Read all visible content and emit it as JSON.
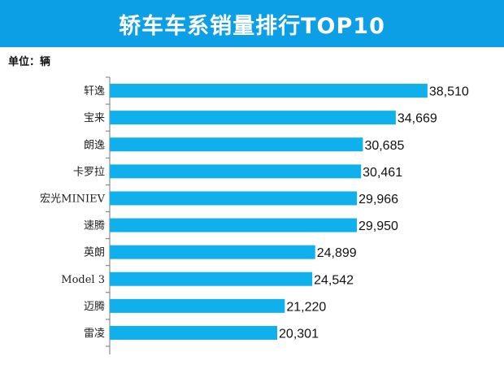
{
  "header": {
    "title": "轿车车系销量排行TOP10",
    "unit_label": "单位：辆"
  },
  "colors": {
    "banner": "#0c9fe6",
    "bar": "#10b0ec",
    "axis": "#777777"
  },
  "chart_data": {
    "type": "bar",
    "orientation": "horizontal",
    "title": "轿车车系销量排行TOP10",
    "unit": "辆",
    "categories": [
      "轩逸",
      "宝来",
      "朗逸",
      "卡罗拉",
      "宏光MINIEV",
      "速腾",
      "英朗",
      "Model 3",
      "迈腾",
      "雷凌"
    ],
    "values": [
      38510,
      34669,
      30685,
      30461,
      29966,
      29950,
      24899,
      24542,
      21220,
      20301
    ],
    "value_labels": [
      "38,510",
      "34,669",
      "30,685",
      "30,461",
      "29,966",
      "29,950",
      "24,899",
      "24,542",
      "21,220",
      "20,301"
    ],
    "xlim": [
      0,
      46800
    ],
    "grid": false,
    "legend": "none"
  }
}
